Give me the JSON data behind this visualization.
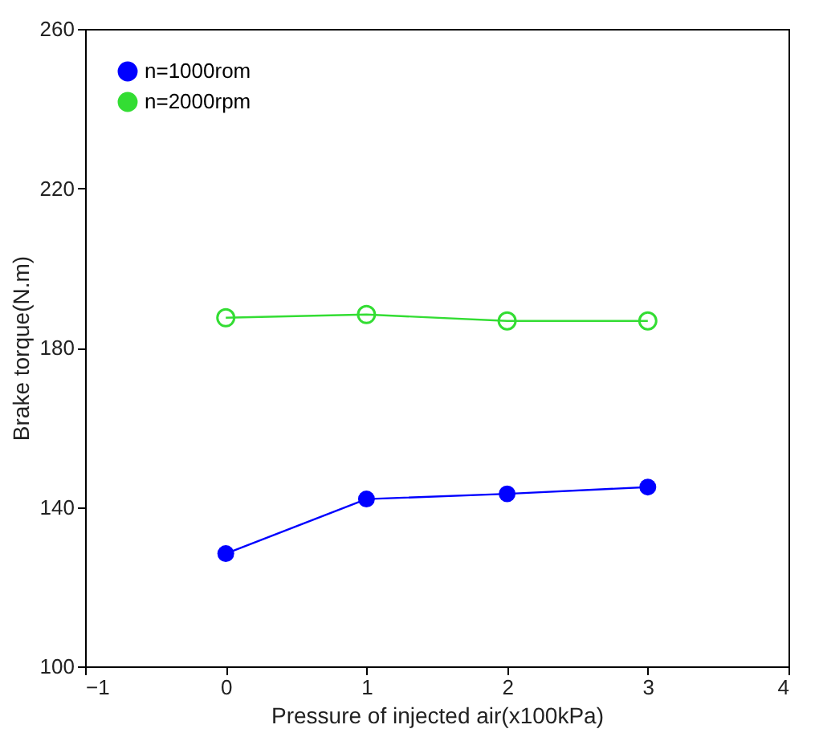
{
  "chart_data": {
    "type": "line",
    "xlabel": "Pressure of injected air(x100kPa)",
    "ylabel": "Brake torque(N.m)",
    "x": [
      0,
      1,
      2,
      3
    ],
    "series": [
      {
        "name": "n=1000rom",
        "color": "#0000ff",
        "values": [
          128.3,
          142,
          143.3,
          145
        ]
      },
      {
        "name": "n=2000rpm",
        "color": "#33dd33",
        "values": [
          187.5,
          188.3,
          186.7,
          186.7
        ]
      }
    ],
    "xlim": [
      -1,
      4
    ],
    "xticks": [
      -1,
      0,
      1,
      2,
      3,
      4
    ],
    "ylim": [
      100,
      260
    ],
    "yticks": [
      100,
      140,
      180,
      220,
      260
    ],
    "grid": false,
    "legend": "top left",
    "marker": "circle"
  }
}
